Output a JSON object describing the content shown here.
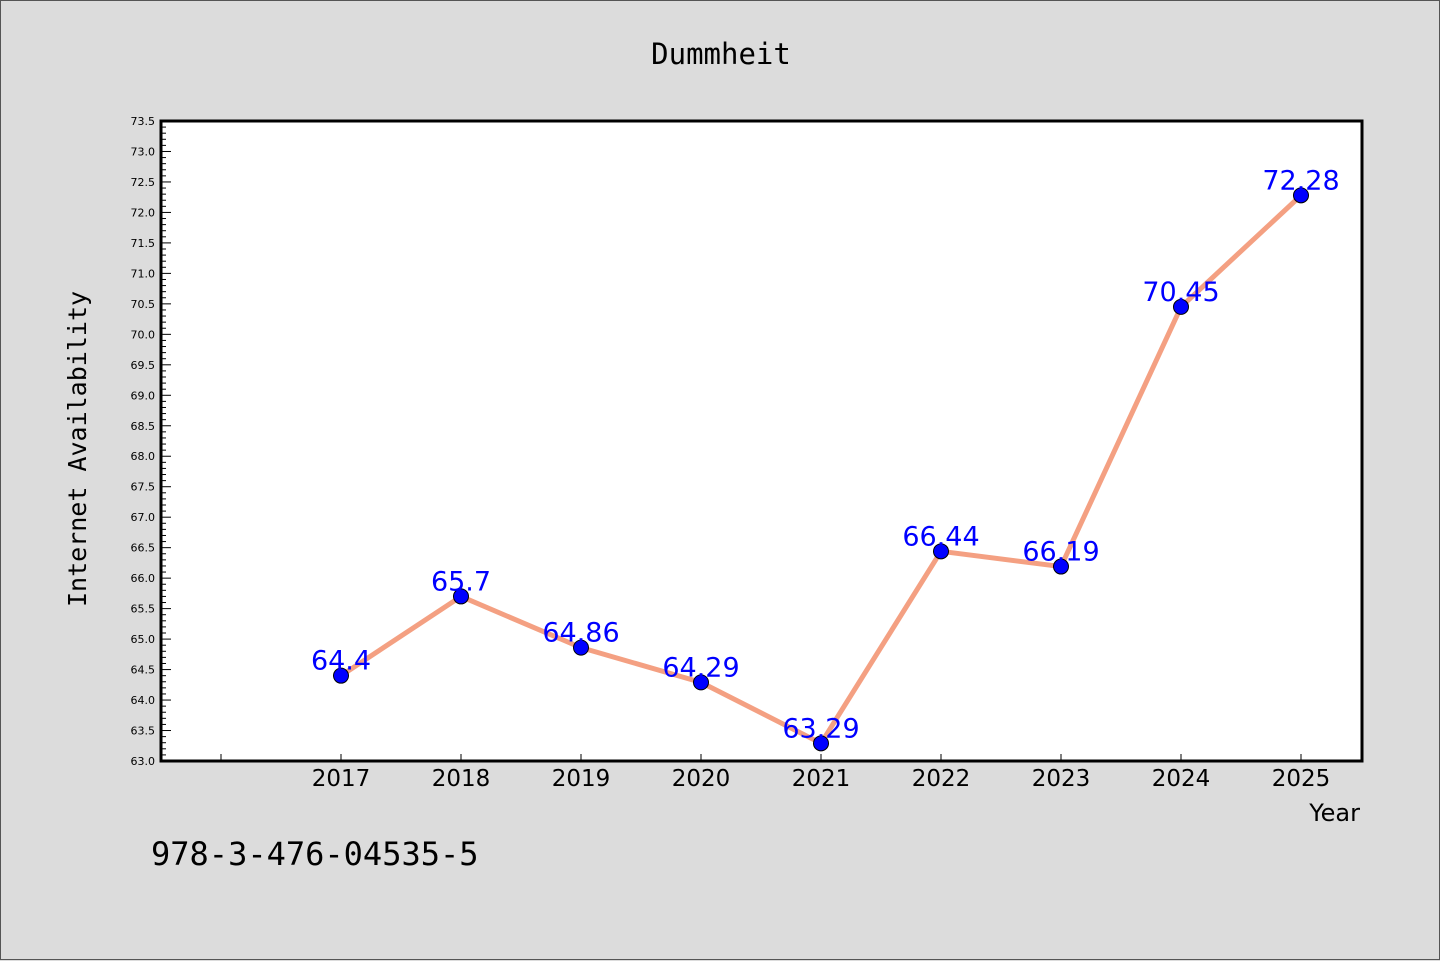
{
  "chart_data": {
    "type": "line",
    "title": "Dummheit",
    "xlabel": "Year",
    "ylabel": "Internet Availability",
    "x": [
      "2017",
      "2018",
      "2019",
      "2020",
      "2021",
      "2022",
      "2023",
      "2024",
      "2025"
    ],
    "values": [
      64.4,
      65.7,
      64.86,
      64.29,
      63.29,
      66.44,
      66.19,
      70.45,
      72.28
    ],
    "data_labels": [
      "64.4",
      "65.7",
      "64.86",
      "64.29",
      "63.29",
      "66.44",
      "66.19",
      "70.45",
      "72.28"
    ],
    "ylim": [
      63.0,
      73.5
    ],
    "ytick_labels": [
      "63.0",
      "63.5",
      "64.0",
      "64.5",
      "65.0",
      "65.5",
      "66.0",
      "66.5",
      "67.0",
      "67.5",
      "68.0",
      "68.5",
      "69.0",
      "69.5",
      "70.0",
      "70.5",
      "71.0",
      "71.5",
      "72.0",
      "72.5",
      "73.0",
      "73.5"
    ],
    "line_color": "#f4a082",
    "marker_color": "#0000ff",
    "label_color": "#0000ff",
    "grid": false,
    "legend": "none"
  },
  "footnote": "978-3-476-04535-5"
}
